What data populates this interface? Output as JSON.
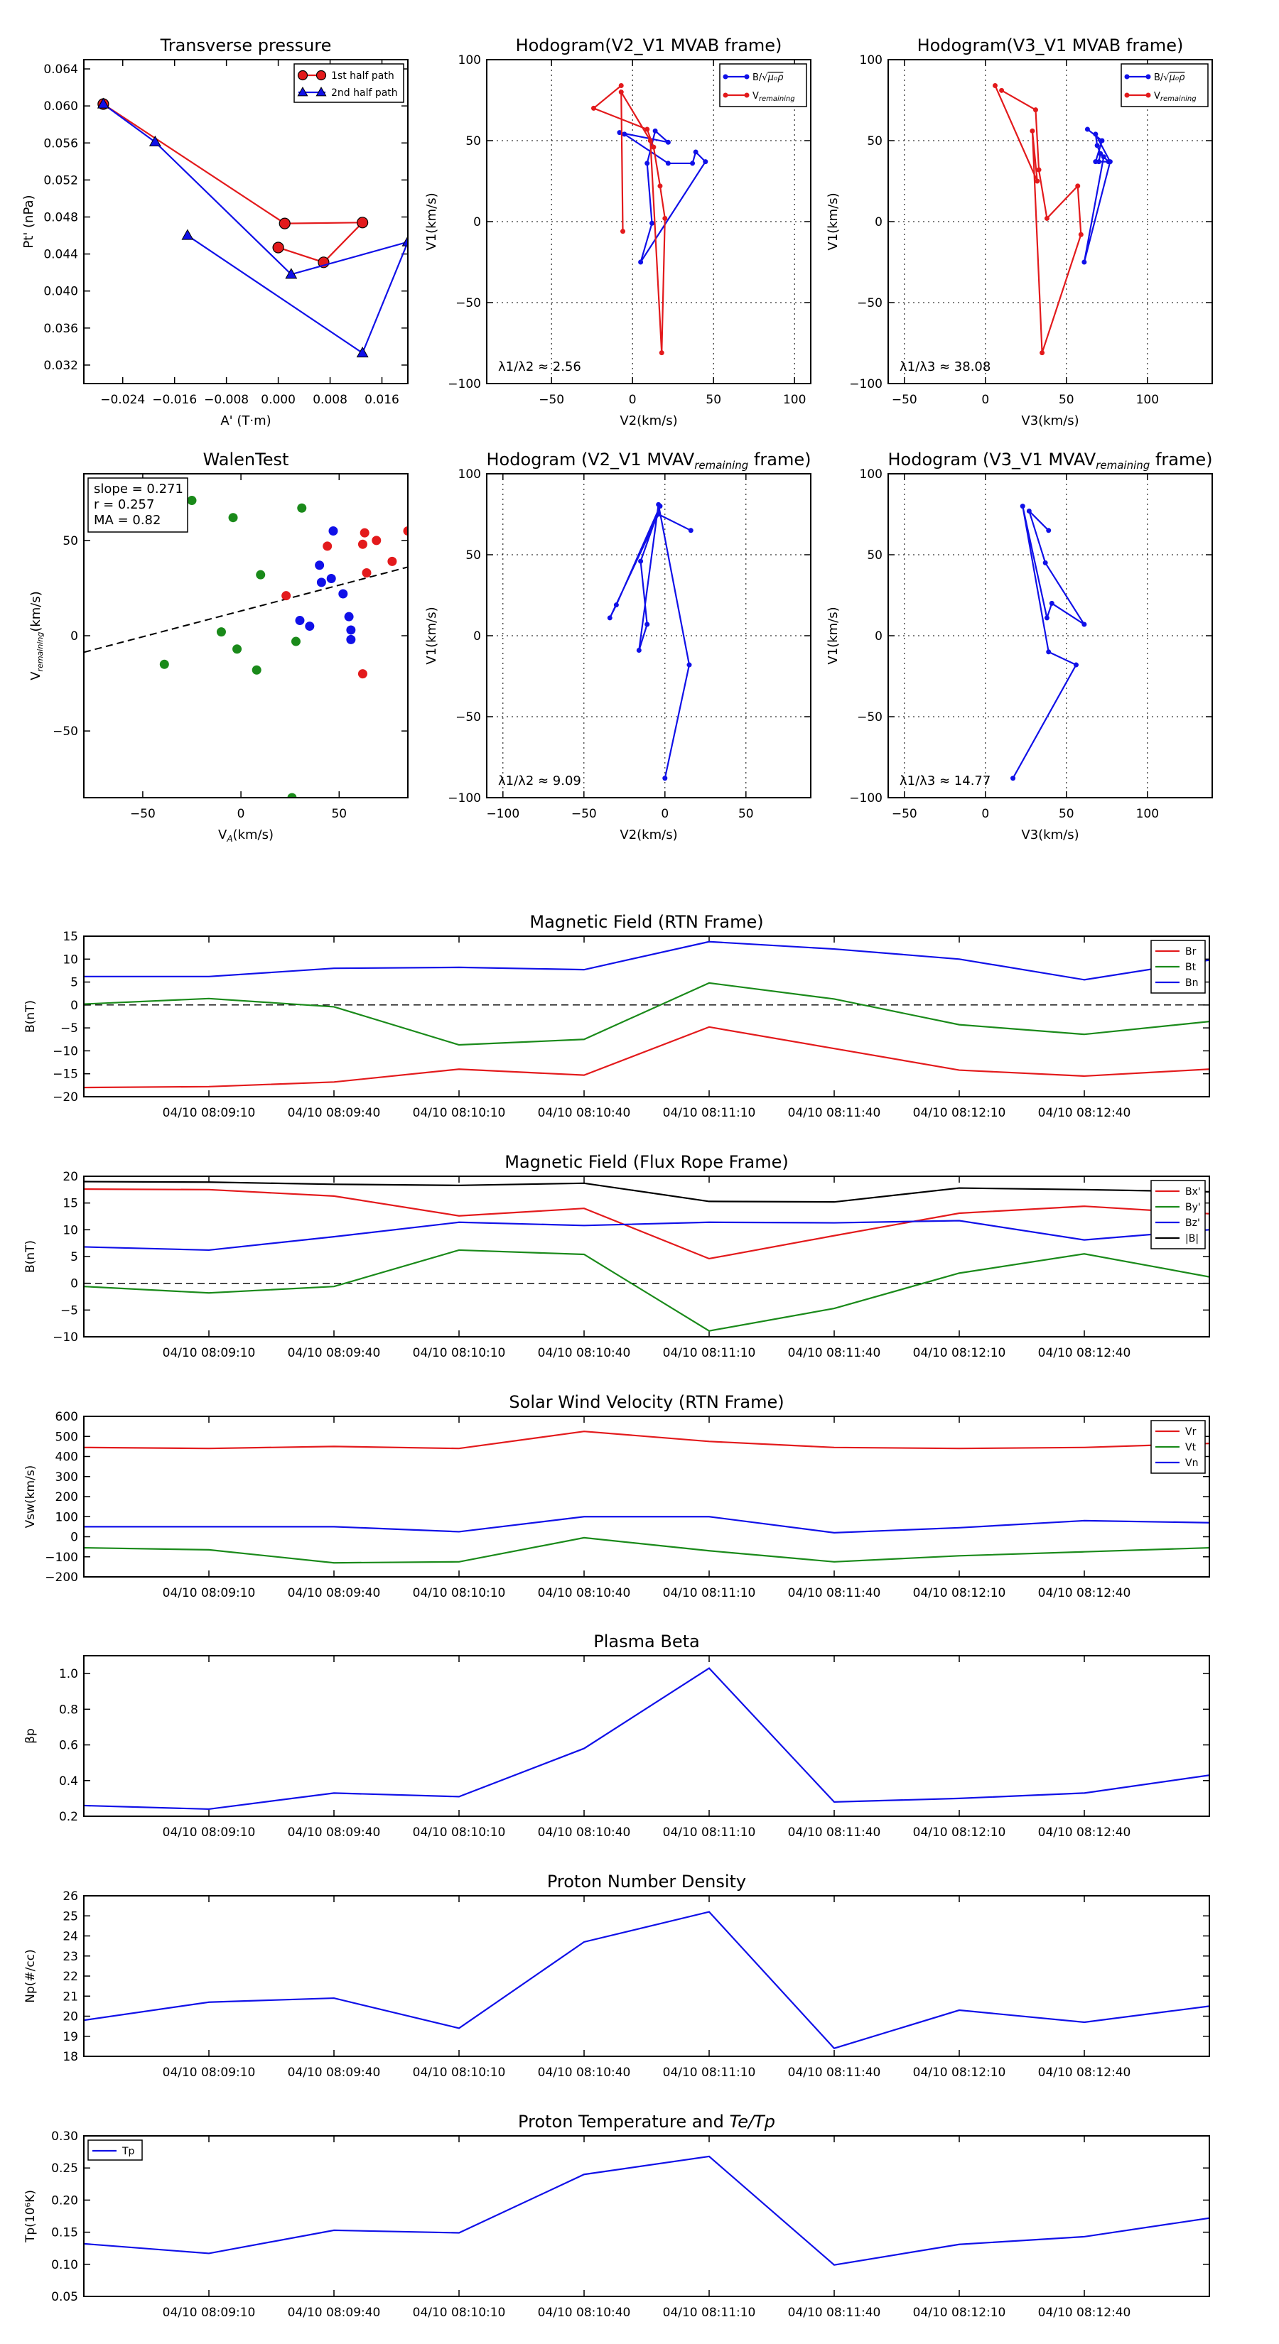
{
  "colors": {
    "red": "#e31a1c",
    "blue": "#1010e8",
    "green": "#1a8a1a",
    "black": "#000000"
  },
  "chart_data": [
    {
      "id": "transverse_pressure",
      "type": "line",
      "title": "Transverse pressure",
      "xlabel": "A' (T·m)",
      "ylabel": "Pt' (nPa)",
      "xlim": [
        -0.03,
        0.02
      ],
      "ylim": [
        0.03,
        0.065
      ],
      "xticks": [
        -0.024,
        -0.016,
        -0.008,
        0.0,
        0.008,
        0.016
      ],
      "xtick_labels": [
        "−0.024",
        "−0.016",
        "−0.008",
        "0.000",
        "0.008",
        "0.016"
      ],
      "yticks": [
        0.032,
        0.036,
        0.04,
        0.044,
        0.048,
        0.052,
        0.056,
        0.06,
        0.064
      ],
      "ytick_labels": [
        "0.032",
        "0.036",
        "0.040",
        "0.044",
        "0.048",
        "0.052",
        "0.056",
        "0.060",
        "0.064"
      ],
      "legend_position": "top-right",
      "series": [
        {
          "name": "1st half path",
          "color": "#e31a1c",
          "marker": "circle",
          "x": [
            -0.027,
            0.001,
            0.013,
            0.007,
            0.0
          ],
          "y": [
            0.0602,
            0.0473,
            0.0474,
            0.0431,
            0.0447
          ]
        },
        {
          "name": "2nd half path",
          "color": "#1010e8",
          "marker": "triangle",
          "x": [
            -0.027,
            -0.019,
            0.002,
            0.02,
            0.013,
            -0.014
          ],
          "y": [
            0.0602,
            0.0561,
            0.0418,
            0.0453,
            0.0333,
            0.046
          ]
        }
      ]
    },
    {
      "id": "hodogram_v2_v1_mvab",
      "type": "line",
      "title": "Hodogram(V2_V1 MVAB frame)",
      "xlabel": "V2(km/s)",
      "ylabel": "V1(km/s)",
      "xlim": [
        -90,
        110
      ],
      "ylim": [
        -100,
        100
      ],
      "xticks": [
        -50,
        0,
        50,
        100
      ],
      "xtick_labels": [
        "−50",
        "0",
        "50",
        "100"
      ],
      "yticks": [
        -100,
        -50,
        0,
        50,
        100
      ],
      "ytick_labels": [
        "−100",
        "−50",
        "0",
        "50",
        "100"
      ],
      "grid": true,
      "annotation": "λ1/λ2 ≈ 2.56",
      "legend_position": "top-right",
      "series": [
        {
          "name": "B/√(μ0ρ)",
          "color": "#1010e8",
          "x": [
            -8,
            22,
            14,
            9,
            12,
            5,
            45,
            39,
            37,
            22,
            -5
          ],
          "y": [
            55,
            49,
            56,
            36,
            -1,
            -25,
            37,
            43,
            36,
            36,
            54
          ]
        },
        {
          "name": "Vremaining",
          "color": "#e31a1c",
          "x": [
            -7,
            -24,
            9,
            13,
            17,
            20,
            18,
            11,
            -7,
            -6
          ],
          "y": [
            84,
            70,
            57,
            46,
            22,
            2,
            -81,
            50,
            80,
            -6
          ]
        }
      ]
    },
    {
      "id": "hodogram_v3_v1_mvab",
      "type": "line",
      "title": "Hodogram(V3_V1 MVAB frame)",
      "xlabel": "V3(km/s)",
      "ylabel": "V1(km/s)",
      "xlim": [
        -60,
        140
      ],
      "ylim": [
        -100,
        100
      ],
      "xticks": [
        -50,
        0,
        50,
        100
      ],
      "xtick_labels": [
        "−50",
        "0",
        "50",
        "100"
      ],
      "yticks": [
        -100,
        -50,
        0,
        50,
        100
      ],
      "ytick_labels": [
        "−100",
        "−50",
        "0",
        "50",
        "100"
      ],
      "grid": true,
      "annotation": "λ1/λ3 ≈ 38.08",
      "legend_position": "top-right",
      "series": [
        {
          "name": "B/√(μ0ρ)",
          "color": "#1010e8",
          "x": [
            63,
            72,
            68,
            76,
            73,
            61,
            77,
            68,
            69,
            71,
            70
          ],
          "y": [
            57,
            50,
            37,
            37,
            40,
            -25,
            37,
            54,
            47,
            42,
            37
          ]
        },
        {
          "name": "Vremaining",
          "color": "#e31a1c",
          "x": [
            10,
            31,
            33,
            38,
            57,
            59,
            35,
            29,
            32,
            6
          ],
          "y": [
            81,
            69,
            32,
            2,
            22,
            -8,
            -81,
            56,
            25,
            84
          ]
        }
      ]
    },
    {
      "id": "walen_test",
      "type": "scatter",
      "title": "WalenTest",
      "xlabel": "V_A(km/s)",
      "ylabel": "V_remaining(km/s)",
      "xlim": [
        -80,
        85
      ],
      "ylim": [
        -85,
        85
      ],
      "xticks": [
        -50,
        0,
        50
      ],
      "xtick_labels": [
        "−50",
        "0",
        "50"
      ],
      "yticks": [
        -50,
        0,
        50
      ],
      "ytick_labels": [
        "−50",
        "0",
        "50"
      ],
      "annotation_lines": [
        "slope = 0.271",
        "r = 0.257",
        "MA = 0.82"
      ],
      "fit_line": {
        "slope": 0.271,
        "intercept": 13.0
      },
      "series": [
        {
          "name": "green",
          "color": "#1a8a1a",
          "x": [
            -25,
            -4,
            10,
            31,
            -10,
            -2,
            8,
            28,
            -39,
            26
          ],
          "y": [
            71,
            62,
            32,
            67,
            2,
            -7,
            -18,
            -3,
            -15,
            -85
          ]
        },
        {
          "name": "blue",
          "color": "#1010e8",
          "x": [
            47,
            40,
            41,
            46,
            52,
            30,
            35,
            55,
            56,
            56
          ],
          "y": [
            55,
            37,
            28,
            30,
            22,
            8,
            5,
            10,
            3,
            -2
          ]
        },
        {
          "name": "red",
          "color": "#e31a1c",
          "x": [
            63,
            69,
            62,
            44,
            77,
            64,
            85,
            23,
            62
          ],
          "y": [
            54,
            50,
            48,
            47,
            39,
            33,
            55,
            21,
            -20
          ]
        }
      ]
    },
    {
      "id": "hodogram_v2_v1_mvav",
      "type": "line",
      "title": "Hodogram (V2_V1 MVAV_remaining frame)",
      "xlabel": "V2(km/s)",
      "ylabel": "V1(km/s)",
      "xlim": [
        -110,
        90
      ],
      "ylim": [
        -100,
        100
      ],
      "xticks": [
        -100,
        -50,
        0,
        50
      ],
      "xtick_labels": [
        "−100",
        "−50",
        "0",
        "50"
      ],
      "yticks": [
        -100,
        -50,
        0,
        50,
        100
      ],
      "ytick_labels": [
        "−100",
        "−50",
        "0",
        "50",
        "100"
      ],
      "grid": true,
      "annotation": "λ1/λ2 ≈ 9.09",
      "series": [
        {
          "name": "B",
          "color": "#1010e8",
          "x": [
            16,
            -4,
            -34,
            -30,
            -3,
            -15,
            -11,
            -16,
            -4,
            15,
            0
          ],
          "y": [
            65,
            75,
            11,
            19,
            80,
            46,
            7,
            -9,
            81,
            -18,
            -88
          ]
        }
      ]
    },
    {
      "id": "hodogram_v3_v1_mvav",
      "type": "line",
      "title": "Hodogram (V3_V1 MVAV_remaining frame)",
      "xlabel": "V3(km/s)",
      "ylabel": "V1(km/s)",
      "xlim": [
        -60,
        140
      ],
      "ylim": [
        -100,
        100
      ],
      "xticks": [
        -50,
        0,
        50,
        100
      ],
      "xtick_labels": [
        "−50",
        "0",
        "50",
        "100"
      ],
      "yticks": [
        -100,
        -50,
        0,
        50,
        100
      ],
      "ytick_labels": [
        "−100",
        "−50",
        "0",
        "50",
        "100"
      ],
      "grid": true,
      "annotation": "λ1/λ3 ≈ 14.77",
      "series": [
        {
          "name": "B",
          "color": "#1010e8",
          "x": [
            39,
            27,
            37,
            61,
            41,
            38,
            23,
            39,
            56,
            17
          ],
          "y": [
            65,
            77,
            45,
            7,
            20,
            11,
            80,
            -10,
            -18,
            -88
          ]
        }
      ]
    },
    {
      "id": "magnetic_field_rtn",
      "type": "line",
      "title": "Magnetic Field (RTN Frame)",
      "ylabel": "B(nT)",
      "ylim": [
        -20,
        15
      ],
      "yticks": [
        -20,
        -15,
        -10,
        -5,
        0,
        5,
        10,
        15
      ],
      "ytick_labels": [
        "−20",
        "−15",
        "−10",
        "−5",
        "0",
        "5",
        "10",
        "15"
      ],
      "zero_line": true,
      "legend_position": "top-right",
      "series": [
        {
          "name": "Br",
          "color": "#e31a1c",
          "values": [
            -18.0,
            -17.8,
            -16.8,
            -14.0,
            -15.3,
            -4.8,
            -9.5,
            -14.2,
            -15.5,
            -14.0
          ]
        },
        {
          "name": "Bt",
          "color": "#1a8a1a",
          "values": [
            0.2,
            1.4,
            -0.4,
            -8.7,
            -7.5,
            4.8,
            1.3,
            -4.3,
            -6.4,
            -3.6
          ]
        },
        {
          "name": "Bn",
          "color": "#1010e8",
          "values": [
            6.2,
            6.2,
            8.0,
            8.2,
            7.7,
            13.8,
            12.2,
            10.0,
            5.5,
            9.8
          ]
        }
      ]
    },
    {
      "id": "magnetic_field_flux_rope",
      "type": "line",
      "title": "Magnetic Field (Flux Rope Frame)",
      "ylabel": "B(nT)",
      "ylim": [
        -10,
        20
      ],
      "yticks": [
        -10,
        -5,
        0,
        5,
        10,
        15,
        20
      ],
      "ytick_labels": [
        "−10",
        "−5",
        "0",
        "5",
        "10",
        "15",
        "20"
      ],
      "zero_line": true,
      "legend_position": "top-right",
      "series": [
        {
          "name": "Bx'",
          "color": "#e31a1c",
          "values": [
            17.6,
            17.5,
            16.3,
            12.6,
            14.0,
            4.6,
            8.9,
            13.1,
            14.4,
            13.0
          ]
        },
        {
          "name": "By'",
          "color": "#1a8a1a",
          "values": [
            -0.6,
            -1.8,
            -0.6,
            6.2,
            5.4,
            -8.9,
            -4.7,
            1.9,
            5.5,
            1.2
          ]
        },
        {
          "name": "Bz'",
          "color": "#1010e8",
          "values": [
            6.8,
            6.2,
            8.7,
            11.4,
            10.8,
            11.4,
            11.3,
            11.7,
            8.1,
            10.0
          ]
        },
        {
          "name": "|B|",
          "color": "#000000",
          "values": [
            19.0,
            18.9,
            18.5,
            18.3,
            18.7,
            15.3,
            15.2,
            17.8,
            17.5,
            17.1
          ]
        }
      ]
    },
    {
      "id": "solar_wind_velocity",
      "type": "line",
      "title": "Solar Wind Velocity (RTN Frame)",
      "ylabel": "Vsw(km/s)",
      "ylim": [
        -200,
        600
      ],
      "yticks": [
        -200,
        -100,
        0,
        100,
        200,
        300,
        400,
        500,
        600
      ],
      "ytick_labels": [
        "−200",
        "−100",
        "0",
        "100",
        "200",
        "300",
        "400",
        "500",
        "600"
      ],
      "legend_position": "top-right",
      "series": [
        {
          "name": "Vr",
          "color": "#e31a1c",
          "values": [
            445,
            440,
            450,
            440,
            525,
            475,
            445,
            440,
            445,
            465
          ]
        },
        {
          "name": "Vt",
          "color": "#1a8a1a",
          "values": [
            -55,
            -65,
            -130,
            -125,
            -5,
            -70,
            -125,
            -95,
            -75,
            -55
          ]
        },
        {
          "name": "Vn",
          "color": "#1010e8",
          "values": [
            50,
            50,
            50,
            25,
            100,
            100,
            20,
            45,
            80,
            70
          ]
        }
      ]
    },
    {
      "id": "plasma_beta",
      "type": "line",
      "title": "Plasma Beta",
      "ylabel": "βp",
      "ylim": [
        0.2,
        1.1
      ],
      "yticks": [
        0.2,
        0.4,
        0.6,
        0.8,
        1.0
      ],
      "ytick_labels": [
        "0.2",
        "0.4",
        "0.6",
        "0.8",
        "1.0"
      ],
      "series": [
        {
          "name": "Beta",
          "color": "#1010e8",
          "values": [
            0.26,
            0.24,
            0.33,
            0.31,
            0.58,
            1.03,
            0.28,
            0.3,
            0.33,
            0.43
          ]
        }
      ]
    },
    {
      "id": "proton_number_density",
      "type": "line",
      "title": "Proton Number Density",
      "ylabel": "Np(#/cc)",
      "ylim": [
        18,
        26
      ],
      "yticks": [
        18,
        19,
        20,
        21,
        22,
        23,
        24,
        25,
        26
      ],
      "ytick_labels": [
        "18",
        "19",
        "20",
        "21",
        "22",
        "23",
        "24",
        "25",
        "26"
      ],
      "series": [
        {
          "name": "Np",
          "color": "#1010e8",
          "values": [
            19.8,
            20.7,
            20.9,
            19.4,
            23.7,
            25.2,
            18.4,
            20.3,
            19.7,
            20.5
          ]
        }
      ]
    },
    {
      "id": "proton_temperature",
      "type": "line",
      "title": "Proton Temperature and Te/Tp",
      "ylabel": "Tp(10⁶K)",
      "ylim": [
        0.05,
        0.3
      ],
      "yticks": [
        0.05,
        0.1,
        0.15,
        0.2,
        0.25,
        0.3
      ],
      "ytick_labels": [
        "0.05",
        "0.10",
        "0.15",
        "0.20",
        "0.25",
        "0.30"
      ],
      "legend_position": "top-left",
      "series": [
        {
          "name": "Tp",
          "color": "#1010e8",
          "values": [
            0.132,
            0.117,
            0.153,
            0.149,
            0.24,
            0.268,
            0.099,
            0.131,
            0.143,
            0.172
          ]
        }
      ]
    }
  ],
  "time_axis": {
    "points": 10,
    "tick_positions": [
      1,
      2,
      3,
      4,
      5,
      6,
      7,
      8
    ],
    "tick_labels": [
      "04/10 08:09:10",
      "04/10 08:09:40",
      "04/10 08:10:10",
      "04/10 08:10:40",
      "04/10 08:11:10",
      "04/10 08:11:40",
      "04/10 08:12:10",
      "04/10 08:12:40"
    ]
  }
}
